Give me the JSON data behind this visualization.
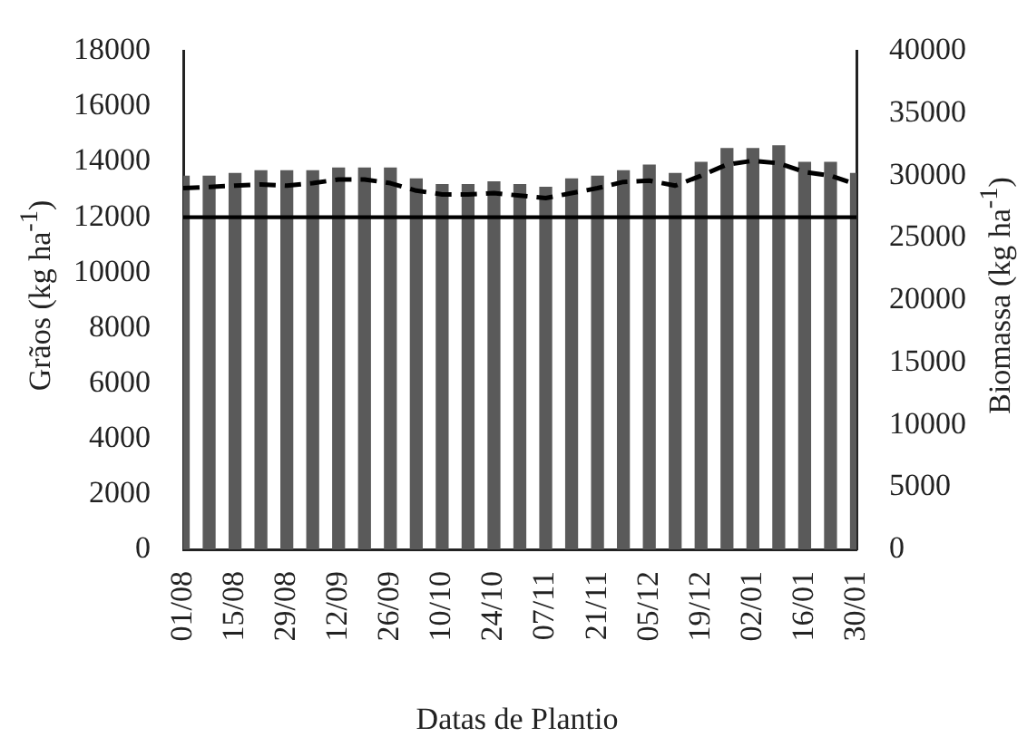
{
  "chart_data": {
    "type": "bar",
    "xlabel": "Datas de Plantio",
    "ylabel": "Grãos (kg ha$^{-1}$)",
    "y2label": "Biomassa  (kg ha$^{-1}$)",
    "categories": [
      "01/08",
      null,
      "15/08",
      null,
      "29/08",
      null,
      "12/09",
      null,
      "26/09",
      null,
      "10/10",
      null,
      "24/10",
      null,
      "07/11",
      null,
      "21/11",
      null,
      "05/12",
      null,
      "19/12",
      null,
      "02/01",
      null,
      "16/01",
      null,
      "30/01"
    ],
    "series": [
      {
        "color": "#5a5a5a",
        "values": [
          13500,
          13500,
          13600,
          13700,
          13700,
          13700,
          13800,
          13800,
          13800,
          13400,
          13200,
          13200,
          13300,
          13200,
          13100,
          13400,
          13500,
          13700,
          13900,
          13600,
          14000,
          14500,
          14500,
          14600,
          14000,
          14000,
          13600
        ]
      },
      {
        "type": "line",
        "axis": "y2",
        "color": "#000000",
        "line_style": "dashed",
        "marker": "none",
        "values": [
          29000,
          29100,
          29200,
          29300,
          29200,
          29400,
          29700,
          29700,
          29400,
          28800,
          28500,
          28500,
          28600,
          28400,
          28200,
          28600,
          29000,
          29500,
          29600,
          29200,
          30000,
          30900,
          31200,
          31000,
          30300,
          30000,
          29300
        ]
      }
    ],
    "ylim": [
      0,
      18000
    ],
    "yticks": [
      0,
      2000,
      4000,
      6000,
      8000,
      10000,
      12000,
      14000,
      16000,
      18000
    ],
    "y2lim": [
      0,
      40000
    ],
    "y2ticks": [
      0,
      5000,
      10000,
      15000,
      20000,
      25000,
      30000,
      35000,
      40000
    ],
    "ref_lines": [
      {
        "axis": "y",
        "value": 12000,
        "color": "#000000"
      }
    ],
    "grid": false,
    "legend": false
  }
}
